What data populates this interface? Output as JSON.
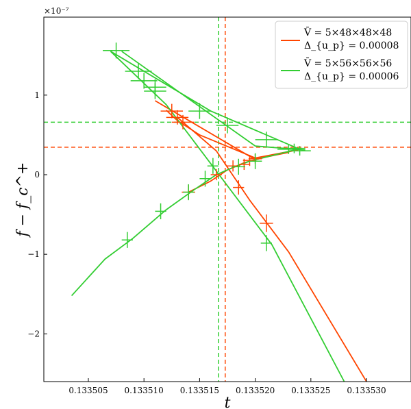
{
  "chart_data": {
    "type": "line",
    "xlabel": "t",
    "ylabel": "f − f_c^+",
    "y_scale_label": "×10⁻⁷",
    "xlim": [
      0.133501,
      0.133534
    ],
    "ylim": [
      -2.6,
      1.98
    ],
    "x_ticks": [
      0.133505,
      0.13351,
      0.133515,
      0.13352,
      0.133525,
      0.13353
    ],
    "x_tick_labels": [
      "0.133505",
      "0.133510",
      "0.133515",
      "0.133520",
      "0.133525",
      "0.133530"
    ],
    "y_ticks": [
      -2,
      -1,
      0,
      1
    ],
    "y_tick_labels": [
      "−2",
      "−1",
      "0",
      "1"
    ],
    "grid": false,
    "legend_position": "top-right",
    "series": [
      {
        "name_line1": "V̄ = 5×48×48×48",
        "name_line2": "Δ_{u_p} = 0.00008",
        "color": "#ff4500",
        "lines": [
          [
            [
              0.133511,
              0.93
            ],
            [
              0.13352,
              0.19
            ],
            [
              0.133524,
              0.32
            ]
          ],
          [
            [
              0.133512,
              0.81
            ],
            [
              0.133513,
              0.68
            ],
            [
              0.133515,
              0.5
            ],
            [
              0.13352,
              0.21
            ],
            [
              0.133523,
              0.29
            ]
          ],
          [
            [
              0.133513,
              0.72
            ],
            [
              0.1335165,
              0.3
            ],
            [
              0.1335195,
              -0.32
            ],
            [
              0.133523,
              -0.97
            ],
            [
              0.13353,
              -2.6
            ]
          ],
          [
            [
              0.133514,
              -0.22
            ],
            [
              0.133516,
              -0.08
            ],
            [
              0.1335175,
              0.06
            ],
            [
              0.133519,
              0.15
            ],
            [
              0.1335205,
              0.21
            ],
            [
              0.133523,
              0.28
            ]
          ]
        ],
        "points": [
          {
            "x": 0.1335125,
            "y": 0.8,
            "xerr": 1e-06,
            "yerr": 0.09
          },
          {
            "x": 0.133513,
            "y": 0.72,
            "xerr": 1e-06,
            "yerr": 0.09
          },
          {
            "x": 0.1335135,
            "y": 0.66,
            "xerr": 1e-06,
            "yerr": 0.09
          },
          {
            "x": 0.133514,
            "y": -0.22,
            "xerr": 6e-07,
            "yerr": 0.09
          },
          {
            "x": 0.1335165,
            "y": 0.0,
            "xerr": 5e-07,
            "yerr": 0.07
          },
          {
            "x": 0.133518,
            "y": 0.11,
            "xerr": 6e-07,
            "yerr": 0.07
          },
          {
            "x": 0.1335185,
            "y": -0.16,
            "xerr": 5e-07,
            "yerr": 0.09
          },
          {
            "x": 0.133519,
            "y": 0.13,
            "xerr": 5e-07,
            "yerr": 0.07
          },
          {
            "x": 0.1335195,
            "y": 0.18,
            "xerr": 6e-07,
            "yerr": 0.07
          },
          {
            "x": 0.13352,
            "y": 0.2,
            "xerr": 6e-07,
            "yerr": 0.06
          },
          {
            "x": 0.133521,
            "y": -0.61,
            "xerr": 6e-07,
            "yerr": 0.11
          }
        ]
      },
      {
        "name_line1": "V̄ = 5×56×56×56",
        "name_line2": "Δ_{u_p} = 0.00006",
        "color": "#32cd32",
        "lines": [
          [
            [
              0.133507,
              1.55
            ],
            [
              0.133512,
              0.88
            ],
            [
              0.1335215,
              -0.88
            ],
            [
              0.133528,
              -2.6
            ]
          ],
          [
            [
              0.133507,
              1.55
            ],
            [
              0.133516,
              0.8
            ],
            [
              0.133524,
              0.32
            ]
          ],
          [
            [
              0.133508,
              1.55
            ],
            [
              0.13352,
              0.36
            ],
            [
              0.1335245,
              0.31
            ]
          ],
          [
            [
              0.1335035,
              -1.52
            ],
            [
              0.1335065,
              -1.06
            ],
            [
              0.133509,
              -0.8
            ],
            [
              0.133512,
              -0.44
            ],
            [
              0.1335145,
              -0.19
            ],
            [
              0.1335165,
              0.0
            ],
            [
              0.133518,
              0.09
            ],
            [
              0.1335195,
              0.17
            ],
            [
              0.1335215,
              0.24
            ],
            [
              0.1335235,
              0.31
            ]
          ]
        ],
        "points": [
          {
            "x": 0.1335075,
            "y": 1.56,
            "xerr": 1.2e-06,
            "yerr": 0.1
          },
          {
            "x": 0.1335095,
            "y": 1.3,
            "xerr": 1.2e-06,
            "yerr": 0.1
          },
          {
            "x": 0.13351,
            "y": 1.18,
            "xerr": 1.2e-06,
            "yerr": 0.1
          },
          {
            "x": 0.133511,
            "y": 1.05,
            "xerr": 1e-06,
            "yerr": 0.1
          },
          {
            "x": 0.133511,
            "y": 1.1,
            "xerr": 1e-06,
            "yerr": 0.1
          },
          {
            "x": 0.133515,
            "y": 0.8,
            "xerr": 1e-06,
            "yerr": 0.1
          },
          {
            "x": 0.1335175,
            "y": 0.62,
            "xerr": 1e-06,
            "yerr": 0.1
          },
          {
            "x": 0.133521,
            "y": 0.44,
            "xerr": 1e-06,
            "yerr": 0.1
          },
          {
            "x": 0.133523,
            "y": 0.32,
            "xerr": 1e-06,
            "yerr": 0.06
          },
          {
            "x": 0.1335235,
            "y": 0.33,
            "xerr": 1e-06,
            "yerr": 0.06
          },
          {
            "x": 0.133524,
            "y": 0.3,
            "xerr": 1e-06,
            "yerr": 0.06
          },
          {
            "x": 0.1335085,
            "y": -0.82,
            "xerr": 5e-07,
            "yerr": 0.1
          },
          {
            "x": 0.1335115,
            "y": -0.46,
            "xerr": 5e-07,
            "yerr": 0.1
          },
          {
            "x": 0.133514,
            "y": -0.22,
            "xerr": 5e-07,
            "yerr": 0.1
          },
          {
            "x": 0.1335155,
            "y": -0.05,
            "xerr": 5e-07,
            "yerr": 0.1
          },
          {
            "x": 0.1335162,
            "y": 0.11,
            "xerr": 5e-07,
            "yerr": 0.1
          },
          {
            "x": 0.1335185,
            "y": 0.1,
            "xerr": 6e-07,
            "yerr": 0.1
          },
          {
            "x": 0.13352,
            "y": 0.17,
            "xerr": 6e-07,
            "yerr": 0.1
          },
          {
            "x": 0.133521,
            "y": -0.86,
            "xerr": 5e-07,
            "yerr": 0.1
          }
        ]
      }
    ],
    "reference_lines": [
      {
        "orientation": "vertical",
        "value": 0.1335173,
        "color": "#ff4500",
        "style": "dashed"
      },
      {
        "orientation": "vertical",
        "value": 0.1335167,
        "color": "#32cd32",
        "style": "dashed"
      },
      {
        "orientation": "horizontal",
        "value": 0.345,
        "color": "#ff4500",
        "style": "dashed"
      },
      {
        "orientation": "horizontal",
        "value": 0.66,
        "color": "#32cd32",
        "style": "dashed"
      }
    ]
  }
}
